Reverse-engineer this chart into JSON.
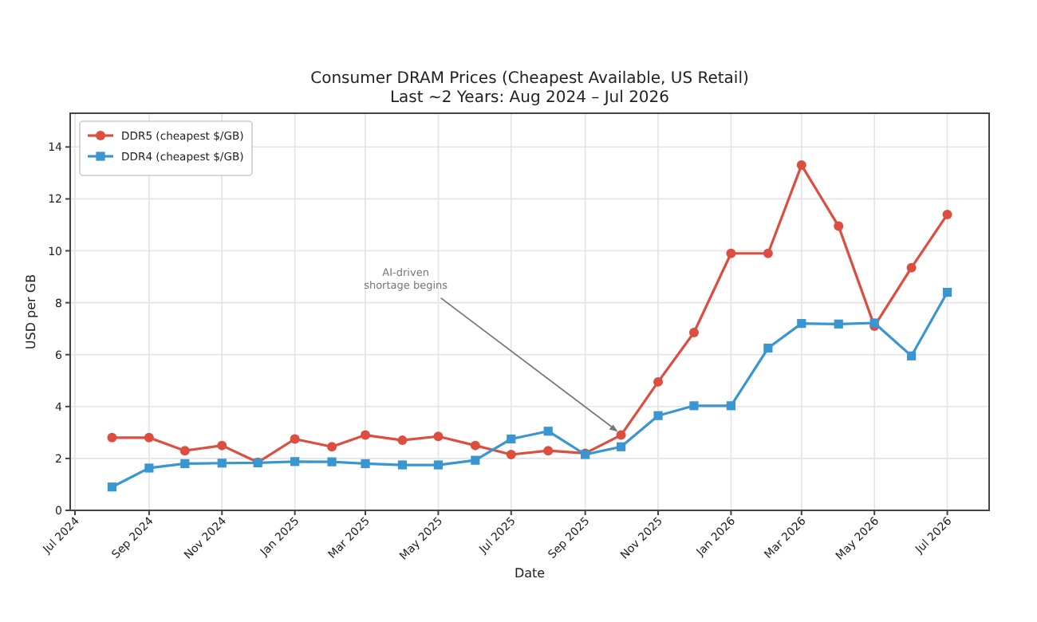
{
  "chart_data": {
    "type": "line",
    "title": "Consumer DRAM Prices (Cheapest Available, US Retail)",
    "subtitle": "Last ~2 Years: Aug 2024 – Jul 2026",
    "xlabel": "Date",
    "ylabel": "USD per GB",
    "x": [
      "2024-08-01",
      "2024-09-01",
      "2024-10-01",
      "2024-11-01",
      "2024-12-01",
      "2025-01-01",
      "2025-02-01",
      "2025-03-01",
      "2025-04-01",
      "2025-05-01",
      "2025-06-01",
      "2025-07-01",
      "2025-08-01",
      "2025-09-01",
      "2025-10-01",
      "2025-11-01",
      "2025-12-01",
      "2026-01-01",
      "2026-02-01",
      "2026-03-01",
      "2026-04-01",
      "2026-05-01",
      "2026-06-01",
      "2026-07-01"
    ],
    "series": [
      {
        "name": "DDR5 (cheapest $/GB)",
        "color": "#dc4e3f",
        "marker": "circle",
        "values": [
          2.8,
          2.8,
          2.3,
          2.5,
          1.85,
          2.75,
          2.45,
          2.9,
          2.7,
          2.85,
          2.5,
          2.15,
          2.3,
          2.2,
          2.9,
          4.95,
          6.85,
          9.9,
          9.9,
          13.3,
          10.95,
          7.1,
          9.35,
          11.4
        ]
      },
      {
        "name": "DDR4 (cheapest $/GB)",
        "color": "#3a96d0",
        "marker": "square",
        "values": [
          0.9,
          1.63,
          1.8,
          1.82,
          1.83,
          1.88,
          1.87,
          1.8,
          1.75,
          1.75,
          1.93,
          2.75,
          3.05,
          2.15,
          2.45,
          3.65,
          4.03,
          4.03,
          6.25,
          7.2,
          7.18,
          7.22,
          5.95,
          8.4
        ]
      }
    ],
    "annotations": [
      {
        "text": "AI-driven\nshortage begins",
        "x": "2025-10-01",
        "y": 2.9
      }
    ],
    "xlim": [
      "2024-06-27",
      "2026-08-05"
    ],
    "xticks": [
      {
        "value": "2024-07-01",
        "label": "Jul 2024"
      },
      {
        "value": "2024-09-01",
        "label": "Sep 2024"
      },
      {
        "value": "2024-11-01",
        "label": "Nov 2024"
      },
      {
        "value": "2025-01-01",
        "label": "Jan 2025"
      },
      {
        "value": "2025-03-01",
        "label": "Mar 2025"
      },
      {
        "value": "2025-05-01",
        "label": "May 2025"
      },
      {
        "value": "2025-07-01",
        "label": "Jul 2025"
      },
      {
        "value": "2025-09-01",
        "label": "Sep 2025"
      },
      {
        "value": "2025-11-01",
        "label": "Nov 2025"
      },
      {
        "value": "2026-01-01",
        "label": "Jan 2026"
      },
      {
        "value": "2026-03-01",
        "label": "Mar 2026"
      },
      {
        "value": "2026-05-01",
        "label": "May 2026"
      },
      {
        "value": "2026-07-01",
        "label": "Jul 2026"
      }
    ],
    "ylim": [
      0,
      15.3
    ],
    "yticks": [
      0,
      2,
      4,
      6,
      8,
      10,
      12,
      14
    ],
    "grid": true,
    "legend": "top left",
    "line_style": "solid"
  }
}
